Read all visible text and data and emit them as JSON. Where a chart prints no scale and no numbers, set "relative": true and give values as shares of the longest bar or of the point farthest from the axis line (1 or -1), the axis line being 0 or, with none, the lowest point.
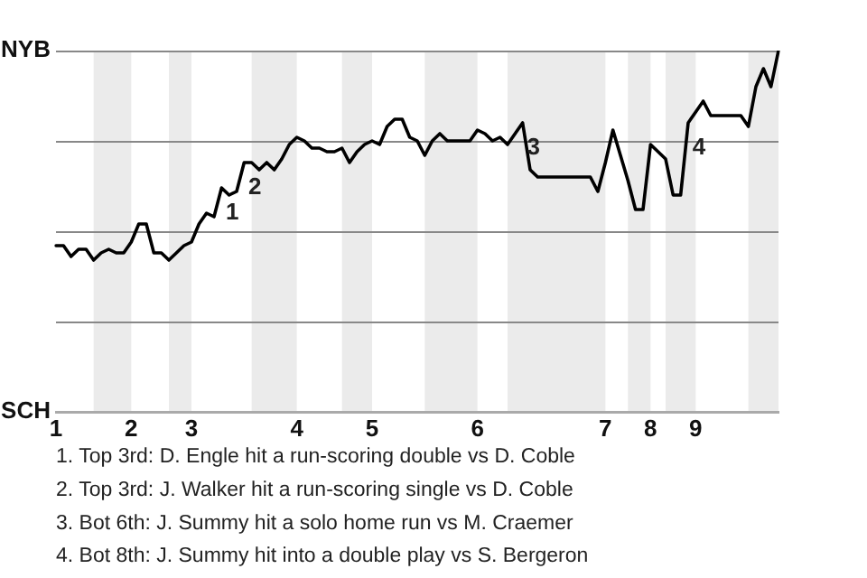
{
  "chart_data": {
    "type": "line",
    "relative": true,
    "categories": [
      "1",
      null,
      null,
      null,
      null,
      null,
      null,
      null,
      null,
      null,
      "2",
      null,
      null,
      null,
      null,
      null,
      null,
      null,
      "3",
      null,
      null,
      null,
      null,
      null,
      null,
      null,
      null,
      null,
      null,
      null,
      null,
      null,
      "4",
      null,
      null,
      null,
      null,
      null,
      null,
      null,
      null,
      null,
      "5",
      null,
      null,
      null,
      null,
      null,
      null,
      null,
      null,
      null,
      null,
      null,
      null,
      null,
      "6",
      null,
      null,
      null,
      null,
      null,
      null,
      null,
      null,
      null,
      null,
      null,
      null,
      null,
      null,
      null,
      null,
      "7",
      null,
      null,
      null,
      null,
      null,
      "8",
      null,
      null,
      null,
      null,
      null,
      "9",
      null,
      null,
      null,
      null,
      null,
      null,
      null,
      null,
      null,
      null,
      null
    ],
    "series": [
      {
        "color": "#000000",
        "values": [
          0.46,
          0.46,
          0.43,
          0.45,
          0.45,
          0.42,
          0.44,
          0.45,
          0.44,
          0.44,
          0.47,
          0.52,
          0.52,
          0.44,
          0.44,
          0.42,
          0.44,
          0.46,
          0.47,
          0.52,
          0.55,
          0.54,
          0.62,
          0.6,
          0.61,
          0.69,
          0.69,
          0.67,
          0.69,
          0.67,
          0.7,
          0.74,
          0.76,
          0.75,
          0.73,
          0.73,
          0.72,
          0.72,
          0.73,
          0.69,
          0.72,
          0.74,
          0.75,
          0.74,
          0.79,
          0.81,
          0.81,
          0.76,
          0.75,
          0.71,
          0.75,
          0.77,
          0.75,
          0.75,
          0.75,
          0.75,
          0.78,
          0.77,
          0.75,
          0.76,
          0.74,
          0.77,
          0.8,
          0.67,
          0.65,
          0.65,
          0.65,
          0.65,
          0.65,
          0.65,
          0.65,
          0.65,
          0.61,
          0.69,
          0.78,
          0.71,
          0.64,
          0.56,
          0.56,
          0.74,
          0.72,
          0.7,
          0.6,
          0.6,
          0.8,
          0.83,
          0.86,
          0.82,
          0.82,
          0.82,
          0.82,
          0.82,
          0.79,
          0.9,
          0.95,
          0.9,
          1
        ]
      }
    ],
    "ref_lines": [
      {
        "axis": "y",
        "value": 0.25,
        "color": "#888888"
      },
      {
        "axis": "y",
        "value": 0.5,
        "color": "#888888"
      },
      {
        "axis": "y",
        "value": 0.75,
        "color": "#888888"
      },
      {
        "axis": "y",
        "value": 1,
        "color": "#888888"
      }
    ],
    "annotations": [
      {
        "text": "NYB"
      },
      {
        "text": "SCH"
      },
      {
        "text": "1"
      },
      {
        "text": "2"
      },
      {
        "text": "3"
      },
      {
        "text": "4"
      },
      "1. Top 3rd: D. Engle hit a run-scoring double vs D. Coble",
      "2. Top 3rd: J. Walker hit a run-scoring single vs D. Coble",
      "3. Bot 6th: J. Summy hit a solo home run vs M. Craemer",
      "4. Bot 8th: J. Summy hit into a double play vs S. Bergeron"
    ],
    "legend": false,
    "marker": "none",
    "line_style": "solid"
  }
}
